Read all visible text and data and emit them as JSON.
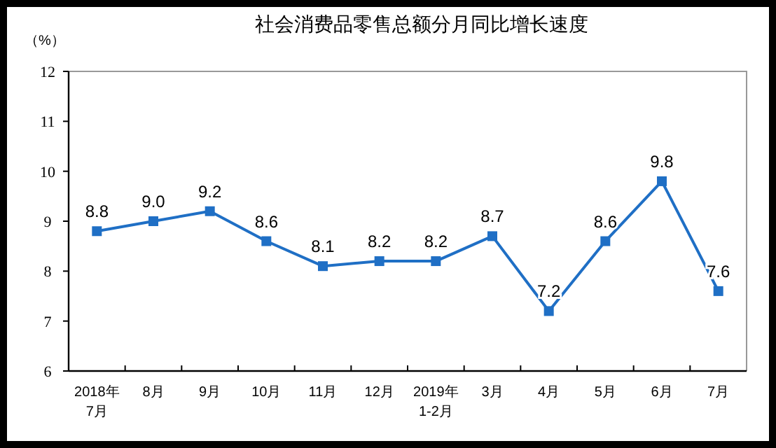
{
  "chart_data": {
    "type": "line",
    "title": "社会消费品零售总额分月同比增长速度",
    "ylabel": "（%）",
    "categories": [
      "2018年\n7月",
      "8月",
      "9月",
      "10月",
      "11月",
      "12月",
      "2019年\n1-2月",
      "3月",
      "4月",
      "5月",
      "6月",
      "7月"
    ],
    "series": [
      {
        "color": "#1f6fc5",
        "values": [
          8.8,
          9.0,
          9.2,
          8.6,
          8.1,
          8.2,
          8.2,
          8.7,
          7.2,
          8.6,
          9.8,
          7.6
        ]
      }
    ],
    "value_labels": [
      "8.8",
      "9.0",
      "9.2",
      "8.6",
      "8.1",
      "8.2",
      "8.2",
      "8.7",
      "7.2",
      "8.6",
      "9.8",
      "7.6"
    ],
    "ylim": [
      6,
      12
    ],
    "yticks": [
      6,
      7,
      8,
      9,
      10,
      11,
      12
    ],
    "marker": "square",
    "line_style": "solid"
  }
}
